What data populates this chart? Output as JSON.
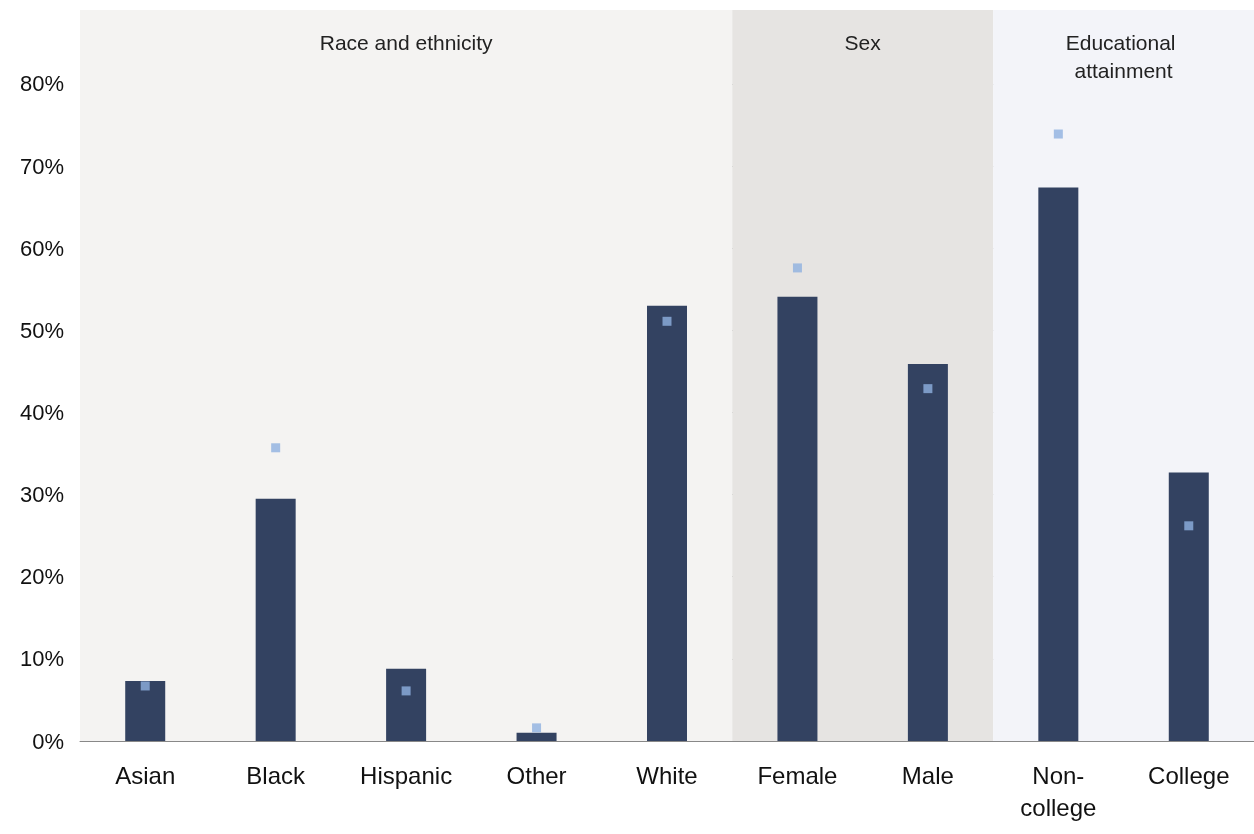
{
  "chart_data": {
    "type": "bar",
    "categories": [
      "Asian",
      "Black",
      "Hispanic",
      "Other",
      "White",
      "Female",
      "Male",
      "Non-college",
      "College"
    ],
    "series": [
      {
        "color": "#334261",
        "values": [
          7.3,
          29.5,
          8.8,
          1.0,
          53.0,
          54.1,
          45.9,
          67.4,
          32.7
        ]
      },
      {
        "type": "scatter",
        "marker": "square",
        "color": "#8eb0e0",
        "values": [
          6.7,
          35.7,
          6.1,
          1.6,
          51.1,
          57.6,
          42.9,
          73.9,
          26.2
        ]
      }
    ],
    "ylim": [
      0,
      89
    ],
    "yticks": [
      {
        "value": 0,
        "label": "0%"
      },
      {
        "value": 10,
        "label": "10%"
      },
      {
        "value": 20,
        "label": "20%"
      },
      {
        "value": 30,
        "label": "30%"
      },
      {
        "value": 40,
        "label": "40%"
      },
      {
        "value": 50,
        "label": "50%"
      },
      {
        "value": 60,
        "label": "60%"
      },
      {
        "value": 70,
        "label": "70%"
      },
      {
        "value": 80,
        "label": "80%"
      }
    ],
    "grid": "y",
    "bands": [
      {
        "axis": "x",
        "from": "Asian",
        "to": "White",
        "label": "Race and ethnicity",
        "color": "#f4f3f2"
      },
      {
        "axis": "x",
        "from": "Female",
        "to": "Male",
        "label": "Sex",
        "color": "#e6e4e2"
      },
      {
        "axis": "x",
        "from": "Non-college",
        "to": "College",
        "label": "Educational attainment",
        "color": "#f3f4f9"
      }
    ]
  }
}
